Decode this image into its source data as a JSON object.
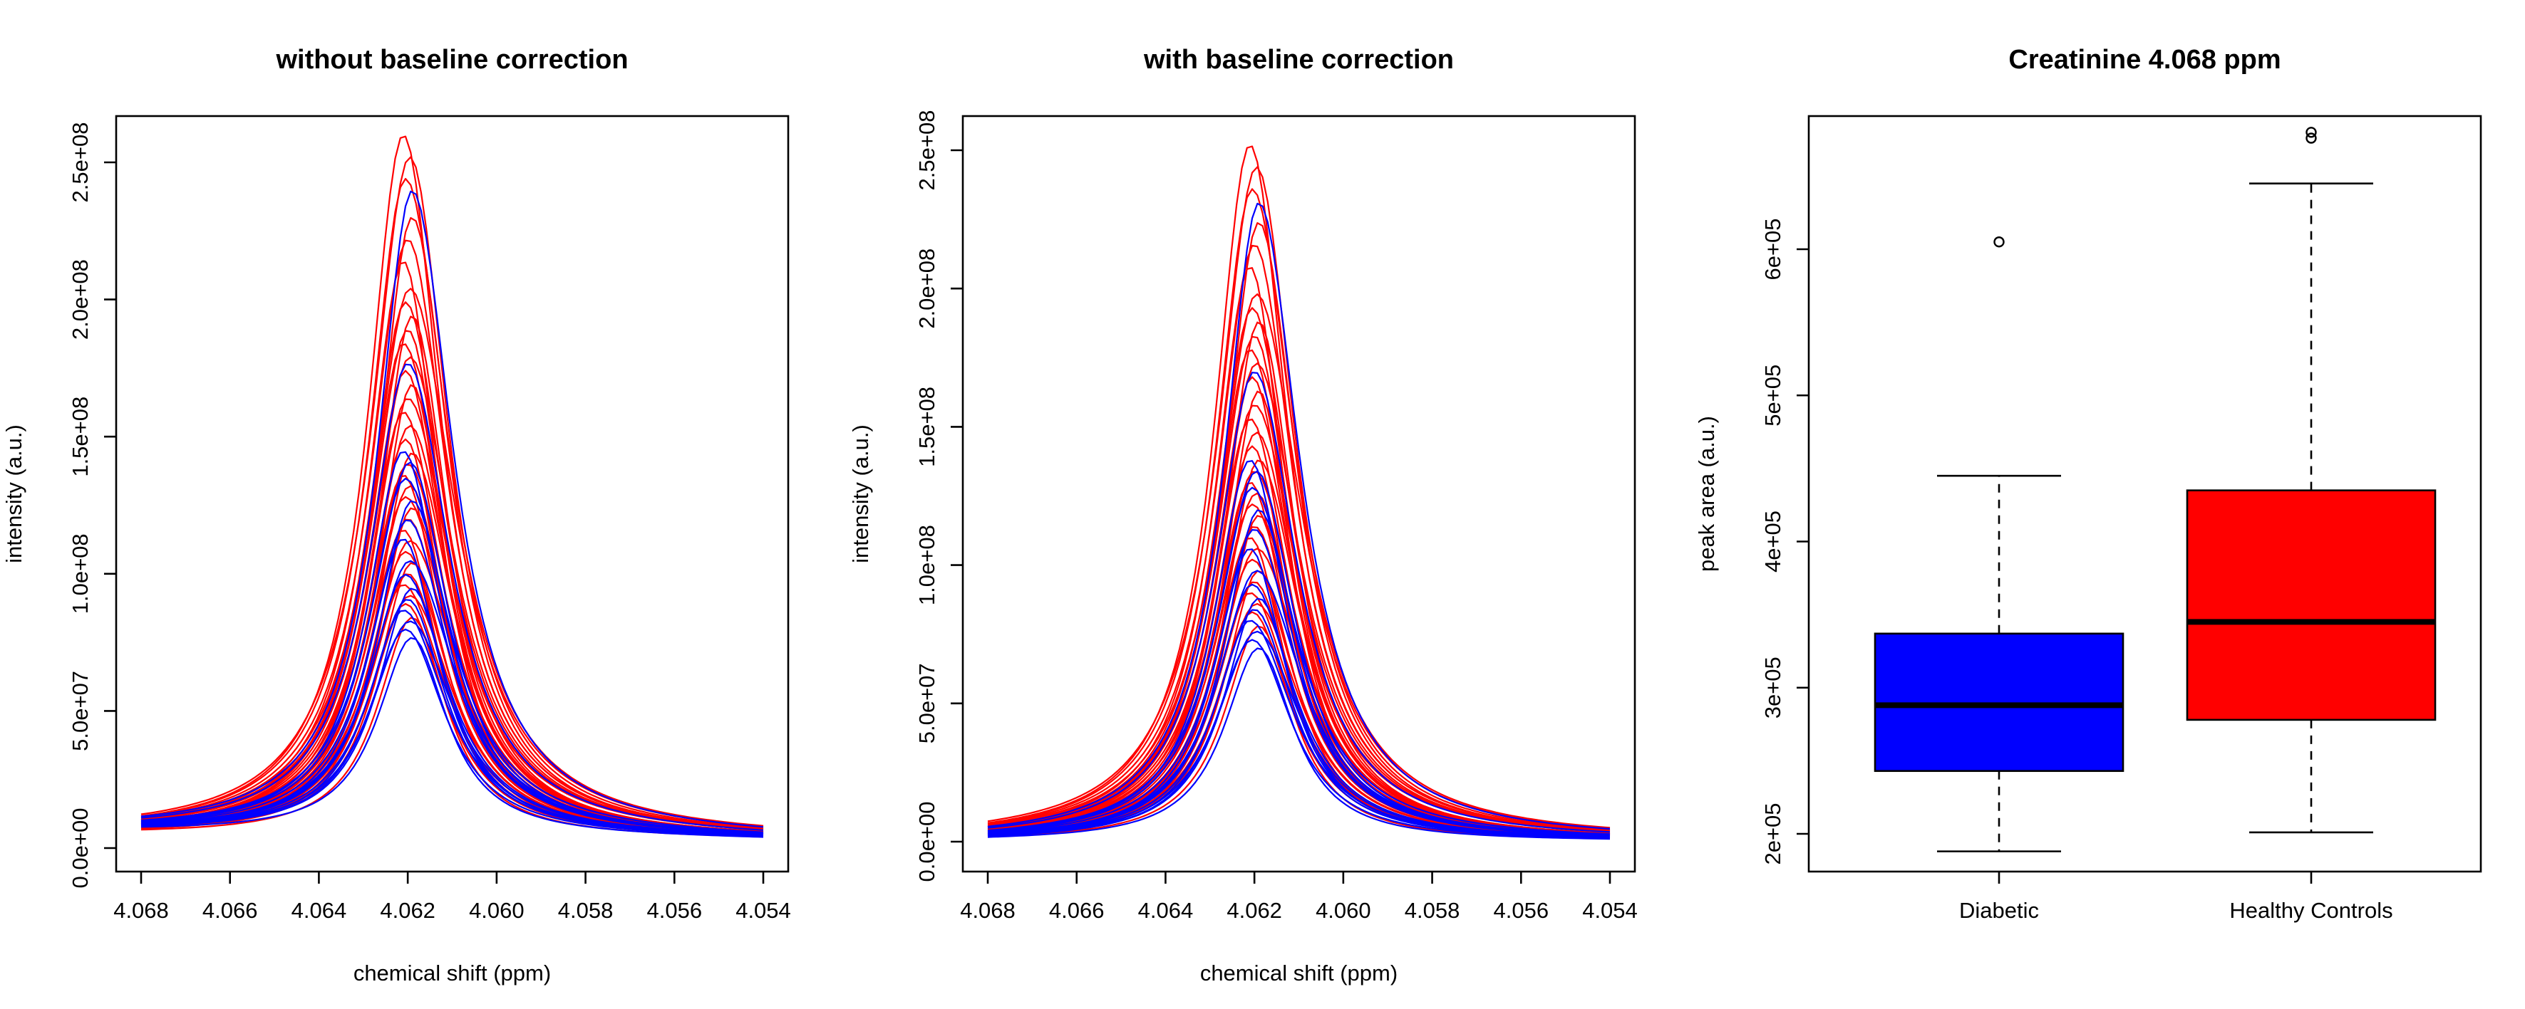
{
  "colors": {
    "diabetic": "#0000ff",
    "healthy": "#ff0000",
    "healthy_box": "#ff0000",
    "axis": "#000000"
  },
  "chart_data": [
    {
      "type": "line",
      "title": "without baseline correction",
      "xlabel": "chemical shift (ppm)",
      "ylabel": "intensity (a.u.)",
      "xlim": [
        4.068,
        4.054
      ],
      "ylim": [
        0,
        250000000
      ],
      "x_ticks": [
        4.068,
        4.066,
        4.064,
        4.062,
        4.06,
        4.058,
        4.056,
        4.054
      ],
      "x_tick_labels": [
        "4.068",
        "4.066",
        "4.064",
        "4.062",
        "4.060",
        "4.058",
        "4.056",
        "4.054"
      ],
      "y_ticks": [
        0,
        50000000,
        100000000,
        150000000,
        200000000,
        250000000
      ],
      "y_tick_labels": [
        "0.0e+00",
        "5.0e+07",
        "1.0e+08",
        "1.5e+08",
        "2.0e+08",
        "2.5e+08"
      ],
      "peak_center": 4.062,
      "baseline_offset": 3000000,
      "series": [
        {
          "group": "Diabetic",
          "color": "#0000ff",
          "peaks": [
            72000000,
            75000000,
            78000000,
            82000000,
            86000000,
            90000000,
            95000000,
            100000000,
            108000000,
            115000000,
            122000000,
            130000000,
            136000000,
            140000000,
            172000000,
            235000000
          ]
        },
        {
          "group": "Healthy Controls",
          "color": "#ff0000",
          "peaks": [
            80000000,
            85000000,
            88000000,
            92000000,
            96000000,
            100000000,
            104000000,
            108000000,
            112000000,
            116000000,
            120000000,
            124000000,
            128000000,
            132000000,
            136000000,
            140000000,
            145000000,
            150000000,
            155000000,
            160000000,
            165000000,
            170000000,
            175000000,
            180000000,
            185000000,
            190000000,
            195000000,
            200000000,
            210000000,
            218000000,
            226000000,
            240000000,
            248000000,
            256000000
          ]
        }
      ]
    },
    {
      "type": "line",
      "title": "with baseline correction",
      "xlabel": "chemical shift (ppm)",
      "ylabel": "intensity (a.u.)",
      "xlim": [
        4.068,
        4.054
      ],
      "ylim": [
        0,
        250000000
      ],
      "x_ticks": [
        4.068,
        4.066,
        4.064,
        4.062,
        4.06,
        4.058,
        4.056,
        4.054
      ],
      "x_tick_labels": [
        "4.068",
        "4.066",
        "4.064",
        "4.062",
        "4.060",
        "4.058",
        "4.056",
        "4.054"
      ],
      "y_ticks": [
        0,
        50000000,
        100000000,
        150000000,
        200000000,
        250000000
      ],
      "y_tick_labels": [
        "0.0e+00",
        "5.0e+07",
        "1.0e+08",
        "1.5e+08",
        "2.0e+08",
        "2.5e+08"
      ],
      "peak_center": 4.062,
      "baseline_offset": 0,
      "series": [
        {
          "group": "Diabetic",
          "color": "#0000ff",
          "peaks": [
            70000000,
            73000000,
            76000000,
            80000000,
            84000000,
            88000000,
            93000000,
            98000000,
            106000000,
            113000000,
            120000000,
            128000000,
            134000000,
            138000000,
            170000000,
            231000000
          ]
        },
        {
          "group": "Healthy Controls",
          "color": "#ff0000",
          "peaks": [
            78000000,
            83000000,
            86000000,
            90000000,
            94000000,
            98000000,
            102000000,
            106000000,
            110000000,
            114000000,
            118000000,
            122000000,
            126000000,
            130000000,
            134000000,
            138000000,
            143000000,
            148000000,
            153000000,
            158000000,
            163000000,
            168000000,
            173000000,
            178000000,
            183000000,
            188000000,
            193000000,
            198000000,
            208000000,
            216000000,
            224000000,
            236000000,
            244000000,
            252000000
          ]
        }
      ]
    },
    {
      "type": "box",
      "title": "Creatinine   4.068  ppm",
      "xlabel": "",
      "ylabel": "peak area (a.u.)",
      "ylim": [
        180000,
        700000
      ],
      "y_ticks": [
        200000,
        300000,
        400000,
        500000,
        600000
      ],
      "y_tick_labels": [
        "2e+05",
        "3e+05",
        "4e+05",
        "5e+05",
        "6e+05"
      ],
      "categories": [
        "Diabetic",
        "Healthy Controls"
      ],
      "boxes": [
        {
          "name": "Diabetic",
          "color": "#0000ff",
          "whisker_low": 188000,
          "q1": 243000,
          "median": 288000,
          "q3": 337000,
          "whisker_high": 445000,
          "outliers": [
            605000
          ]
        },
        {
          "name": "Healthy Controls",
          "color": "#ff0000",
          "whisker_low": 201000,
          "q1": 278000,
          "median": 345000,
          "q3": 435000,
          "whisker_high": 645000,
          "outliers": [
            676000,
            680000
          ]
        }
      ]
    }
  ]
}
